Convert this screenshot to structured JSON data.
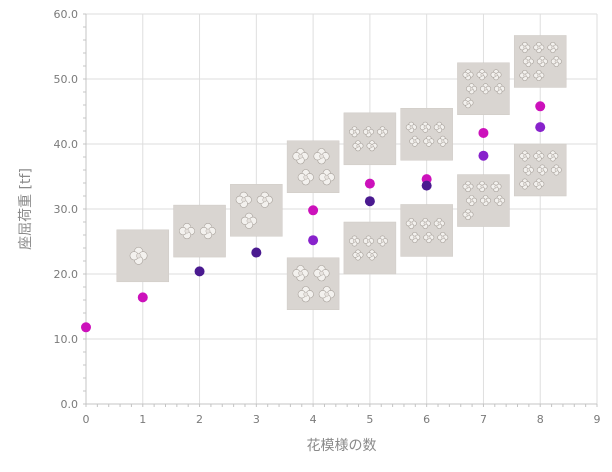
{
  "chart_data": {
    "type": "scatter",
    "title": "",
    "xlabel": "花模様の数",
    "ylabel": "座屈荷重 [tf]",
    "xlim": [
      0,
      9
    ],
    "ylim": [
      0,
      60
    ],
    "x_ticks": [
      "0",
      "1",
      "2",
      "3",
      "4",
      "5",
      "6",
      "7",
      "8",
      "9"
    ],
    "y_ticks": [
      "0.0",
      "10.0",
      "20.0",
      "30.0",
      "40.0",
      "50.0",
      "60.0"
    ],
    "grid": true,
    "legend": "none",
    "colors": {
      "magenta": "#cc11bb",
      "purple": "#8822cc",
      "dark_purple": "#4a1a90"
    },
    "series": [
      {
        "color": "magenta",
        "points": [
          [
            0,
            11.8
          ],
          [
            1,
            16.4
          ],
          [
            4,
            29.8
          ],
          [
            5,
            33.9
          ],
          [
            6,
            34.6
          ],
          [
            7,
            41.7
          ],
          [
            8,
            45.8
          ]
        ]
      },
      {
        "color": "purple",
        "points": [
          [
            4,
            25.2
          ],
          [
            7,
            38.2
          ],
          [
            8,
            42.6
          ]
        ]
      },
      {
        "color": "dark_purple",
        "points": [
          [
            2,
            20.4
          ],
          [
            3,
            23.3
          ],
          [
            5,
            31.2
          ],
          [
            6,
            33.6
          ]
        ]
      }
    ],
    "pattern_images": [
      {
        "count": 1,
        "x": 1,
        "y": 22.8
      },
      {
        "count": 2,
        "x": 2,
        "y": 26.6
      },
      {
        "count": 3,
        "x": 3,
        "y": 29.8
      },
      {
        "count": 4,
        "x": 4,
        "y": 36.5
      },
      {
        "count": 4,
        "x": 4,
        "y": 18.5
      },
      {
        "count": 5,
        "x": 5,
        "y": 40.8
      },
      {
        "count": 5,
        "x": 5,
        "y": 24.0
      },
      {
        "count": 6,
        "x": 6,
        "y": 41.5
      },
      {
        "count": 6,
        "x": 6,
        "y": 26.7
      },
      {
        "count": 7,
        "x": 7,
        "y": 48.5
      },
      {
        "count": 7,
        "x": 7,
        "y": 31.3
      },
      {
        "count": 8,
        "x": 8,
        "y": 52.7
      },
      {
        "count": 8,
        "x": 8,
        "y": 36.0
      }
    ]
  }
}
